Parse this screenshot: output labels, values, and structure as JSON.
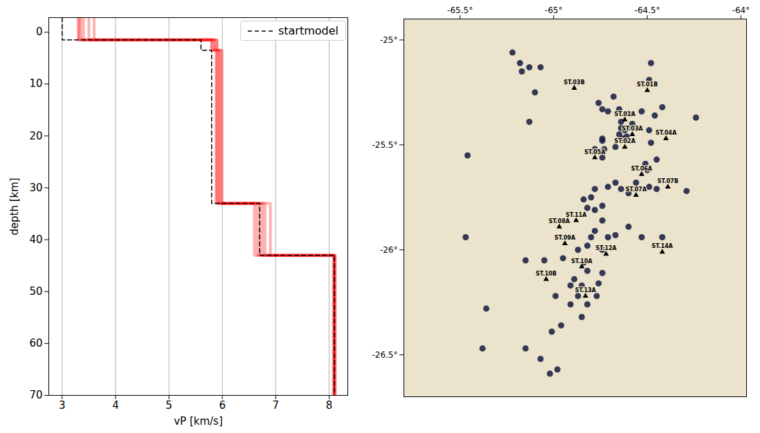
{
  "chart_data": [
    {
      "type": "line",
      "x_label": "vP [km/s]",
      "y_label": "depth [km]",
      "xlim": [
        2.75,
        8.35
      ],
      "ylim": [
        -2.8,
        70
      ],
      "xticks": [
        3,
        4,
        5,
        6,
        7,
        8
      ],
      "yticks": [
        0,
        10,
        20,
        30,
        40,
        50,
        60,
        70
      ],
      "grid": "x",
      "legend": "upper right",
      "series": [
        {
          "color": "#ff0000",
          "line_style": "solid",
          "x": [
            3.3,
            3.3,
            5.8,
            5.8,
            5.9,
            5.9,
            6.6,
            6.6,
            8.1,
            8.1
          ],
          "values": [
            -2.8,
            1.5,
            1.5,
            3.5,
            3.5,
            33,
            33,
            43,
            43,
            70
          ]
        },
        {
          "color": "#ff0000",
          "line_style": "solid",
          "x": [
            3.35,
            3.35,
            5.85,
            5.85,
            5.95,
            5.95,
            6.7,
            6.7,
            8.08,
            8.08
          ],
          "values": [
            -2.8,
            1.5,
            1.5,
            3.5,
            3.5,
            33,
            33,
            43,
            43,
            70
          ]
        },
        {
          "color": "#ff0000",
          "line_style": "solid",
          "x": [
            3.4,
            3.4,
            5.9,
            5.9,
            6.0,
            6.0,
            6.8,
            6.8,
            8.12,
            8.12
          ],
          "values": [
            -2.8,
            1.5,
            1.5,
            3.5,
            3.5,
            33,
            33,
            43,
            43,
            70
          ]
        },
        {
          "color": "#ff0000",
          "line_style": "solid",
          "x": [
            3.5,
            3.5,
            5.8,
            5.8,
            5.92,
            5.92,
            6.9,
            6.9,
            8.1,
            8.1
          ],
          "values": [
            -2.8,
            1.5,
            1.5,
            3.5,
            3.5,
            33,
            33,
            43,
            43,
            70
          ]
        },
        {
          "color": "#ff0000",
          "line_style": "solid",
          "x": [
            3.6,
            3.6,
            5.85,
            5.85,
            5.88,
            5.88,
            6.65,
            6.65,
            8.1,
            8.1
          ],
          "values": [
            -2.8,
            1.5,
            1.5,
            3.5,
            3.5,
            33,
            33,
            43,
            43,
            70
          ]
        },
        {
          "color": "#ff0000",
          "line_style": "solid",
          "x": [
            3.32,
            3.32,
            5.9,
            5.9,
            5.97,
            5.97,
            6.75,
            6.75,
            8.09,
            8.09
          ],
          "values": [
            -2.8,
            1.5,
            1.5,
            3.5,
            3.5,
            33,
            33,
            43,
            43,
            70
          ]
        },
        {
          "name": "startmodel",
          "color": "#000000",
          "line_style": "dashed",
          "x": [
            3.0,
            3.0,
            5.6,
            5.6,
            5.8,
            5.8,
            6.7,
            6.7,
            8.1,
            8.1
          ],
          "values": [
            -2.8,
            1.5,
            1.5,
            3.5,
            3.5,
            33,
            33,
            43,
            43,
            70
          ]
        }
      ]
    },
    {
      "type": "scatter",
      "xlim": [
        -65.8,
        -63.97
      ],
      "ylim": [
        -26.7,
        -24.9
      ],
      "xticks": [
        {
          "value": -65.5,
          "label": "-65.5°"
        },
        {
          "value": -65,
          "label": "-65°"
        },
        {
          "value": -64.5,
          "label": "-64.5°"
        },
        {
          "value": -64,
          "label": "-64°"
        }
      ],
      "yticks": [
        {
          "value": -25,
          "label": "-25°"
        },
        {
          "value": -25.5,
          "label": "-25.5°"
        },
        {
          "value": -26,
          "label": "-26°"
        },
        {
          "value": -26.5,
          "label": "-26.5°"
        }
      ],
      "color": "#141a40",
      "marker": "circle",
      "x": [
        -65.22,
        -65.18,
        -65.17,
        -65.13,
        -65.07,
        -65.1,
        -65.13,
        -65.46,
        -65.47,
        -65.36,
        -65.38,
        -65.15,
        -64.99,
        -65.01,
        -65.15,
        -65.05,
        -64.48,
        -64.49,
        -64.42,
        -64.68,
        -64.76,
        -64.74,
        -64.71,
        -64.65,
        -64.6,
        -64.53,
        -64.46,
        -64.64,
        -64.62,
        -64.6,
        -64.58,
        -64.64,
        -64.65,
        -64.63,
        -64.61,
        -64.24,
        -64.49,
        -64.48,
        -64.74,
        -64.74,
        -64.78,
        -64.73,
        -64.67,
        -64.74,
        -64.45,
        -64.51,
        -64.5,
        -64.56,
        -64.67,
        -64.71,
        -64.78,
        -64.8,
        -64.84,
        -64.82,
        -64.78,
        -64.74,
        -64.64,
        -64.6,
        -64.49,
        -64.45,
        -64.29,
        -64.74,
        -64.78,
        -64.67,
        -64.8,
        -64.74,
        -64.6,
        -64.53,
        -64.42,
        -64.87,
        -64.95,
        -64.84,
        -64.82,
        -64.74,
        -64.89,
        -64.91,
        -64.85,
        -64.76,
        -64.87,
        -64.82,
        -64.77,
        -64.85,
        -64.96,
        -65.07,
        -65.02,
        -64.98,
        -64.91,
        -64.82,
        -64.71
      ],
      "values": [
        -25.06,
        -25.11,
        -25.15,
        -25.13,
        -25.13,
        -25.25,
        -25.39,
        -25.55,
        -25.94,
        -26.28,
        -26.47,
        -26.47,
        -26.22,
        -26.39,
        -26.05,
        -26.05,
        -25.11,
        -25.19,
        -25.32,
        -25.27,
        -25.3,
        -25.33,
        -25.34,
        -25.33,
        -25.35,
        -25.34,
        -25.36,
        -25.42,
        -25.43,
        -25.42,
        -25.4,
        -25.39,
        -25.45,
        -25.47,
        -25.46,
        -25.37,
        -25.43,
        -25.49,
        -25.47,
        -25.48,
        -25.52,
        -25.52,
        -25.51,
        -25.56,
        -25.57,
        -25.59,
        -25.62,
        -25.68,
        -25.68,
        -25.7,
        -25.71,
        -25.75,
        -25.76,
        -25.8,
        -25.81,
        -25.79,
        -25.71,
        -25.73,
        -25.7,
        -25.71,
        -25.72,
        -25.86,
        -25.91,
        -25.93,
        -25.94,
        -26.0,
        -25.89,
        -25.94,
        -25.94,
        -26.0,
        -26.04,
        -26.06,
        -26.1,
        -26.11,
        -26.14,
        -26.17,
        -26.17,
        -26.16,
        -26.22,
        -26.26,
        -26.22,
        -26.32,
        -26.36,
        -26.52,
        -26.59,
        -26.57,
        -26.26,
        -25.98,
        -25.94
      ],
      "stations": {
        "marker": "triangle",
        "color": "#000000",
        "names": [
          "ST.03B",
          "ST.01B",
          "ST.01A",
          "ST.03A",
          "ST.02A",
          "ST.04A",
          "ST.05A",
          "ST.06A",
          "ST.07B",
          "ST.07A",
          "ST.11A",
          "ST.08A",
          "ST.09A",
          "ST.12A",
          "ST.14A",
          "ST.10A",
          "ST.10B",
          "ST.13A"
        ],
        "x": [
          -64.89,
          -64.5,
          -64.62,
          -64.58,
          -64.62,
          -64.4,
          -64.78,
          -64.53,
          -64.39,
          -64.56,
          -64.88,
          -64.97,
          -64.94,
          -64.72,
          -64.42,
          -64.85,
          -65.04,
          -64.83
        ],
        "values": [
          -25.23,
          -25.24,
          -25.38,
          -25.45,
          -25.51,
          -25.47,
          -25.56,
          -25.64,
          -25.7,
          -25.74,
          -25.86,
          -25.89,
          -25.97,
          -26.02,
          -26.01,
          -26.08,
          -26.14,
          -26.22
        ]
      }
    }
  ]
}
